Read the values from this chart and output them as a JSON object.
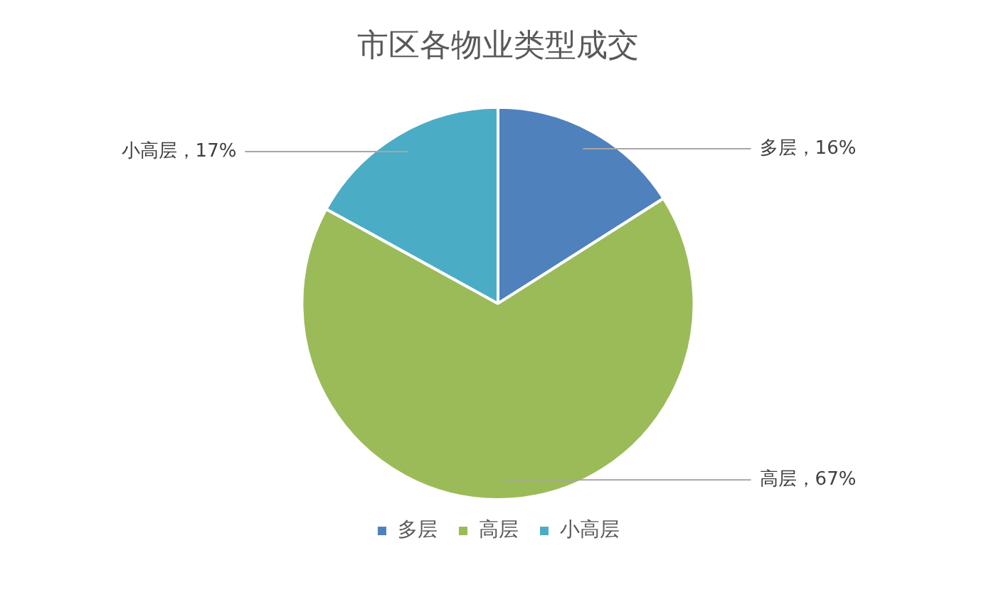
{
  "chart_data": {
    "type": "pie",
    "title": "市区各物业类型成交",
    "categories": [
      "多层",
      "高层",
      "小高层"
    ],
    "values": [
      16,
      67,
      17
    ],
    "colors": [
      "#4f81bd",
      "#9bbb59",
      "#4bacc6"
    ],
    "value_labels": [
      "多层，16%",
      "高层，67%",
      "小高层，17%"
    ],
    "legend": "bottom"
  }
}
